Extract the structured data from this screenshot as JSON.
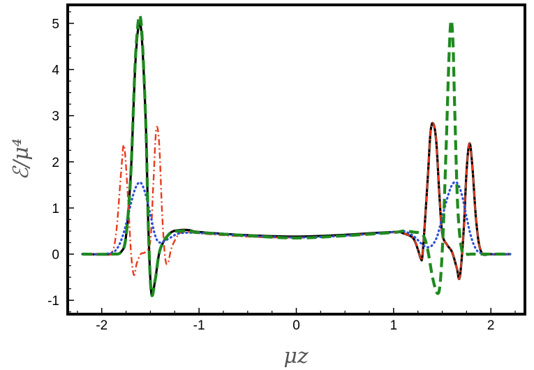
{
  "chart_data": {
    "type": "line",
    "title": "",
    "xlabel": "μz",
    "ylabel": "ℰ/μ⁴",
    "xlim": [
      -2.35,
      2.35
    ],
    "ylim": [
      -1.3,
      5.4
    ],
    "grid": false,
    "legend": "none",
    "x_ticks": [
      -2,
      -1,
      0,
      1,
      2
    ],
    "x_tick_labels": [
      "-2",
      "-1",
      "0",
      "1",
      "2"
    ],
    "y_ticks": [
      -1,
      0,
      1,
      2,
      3,
      4,
      5
    ],
    "y_tick_labels": [
      "-1",
      "0",
      "1",
      "2",
      "3",
      "4",
      "5"
    ],
    "series": [
      {
        "style": "solid",
        "color": "#000000",
        "x": [
          -2.2,
          -1.9,
          -1.8,
          -1.75,
          -1.7,
          -1.65,
          -1.6,
          -1.55,
          -1.52,
          -1.49,
          -1.45,
          -1.4,
          -1.3,
          -1.2,
          -1.1,
          -1.0,
          -0.5,
          0.0,
          0.5,
          1.0,
          1.1,
          1.2,
          1.25,
          1.28,
          1.3,
          1.35,
          1.38,
          1.41,
          1.44,
          1.47,
          1.5,
          1.55,
          1.6,
          1.65,
          1.68,
          1.72,
          1.75,
          1.78,
          1.81,
          1.85,
          1.9,
          2.0,
          2.2
        ],
        "y": [
          0.0,
          0.0,
          0.05,
          0.4,
          1.8,
          4.3,
          4.95,
          3.0,
          0.5,
          -0.85,
          -0.55,
          0.1,
          0.45,
          0.52,
          0.52,
          0.48,
          0.41,
          0.38,
          0.42,
          0.48,
          0.45,
          0.35,
          0.1,
          -0.1,
          0.05,
          1.6,
          2.65,
          2.82,
          2.4,
          1.3,
          0.45,
          0.2,
          0.05,
          -0.3,
          -0.5,
          0.5,
          1.8,
          2.4,
          1.9,
          0.7,
          0.05,
          0.0,
          0.0
        ]
      },
      {
        "style": "dashed",
        "color": "#1f8a1f",
        "x": [
          -2.2,
          -1.9,
          -1.8,
          -1.75,
          -1.7,
          -1.65,
          -1.6,
          -1.55,
          -1.52,
          -1.49,
          -1.45,
          -1.4,
          -1.3,
          -1.2,
          -1.1,
          -1.0,
          -0.5,
          0.0,
          0.5,
          1.0,
          1.1,
          1.2,
          1.3,
          1.35,
          1.4,
          1.45,
          1.48,
          1.51,
          1.54,
          1.57,
          1.59,
          1.61,
          1.63,
          1.66,
          1.7,
          1.75,
          1.8,
          2.0,
          2.2
        ],
        "y": [
          0.0,
          0.0,
          0.05,
          0.4,
          1.8,
          4.4,
          5.1,
          3.0,
          0.5,
          -0.85,
          -0.55,
          0.1,
          0.45,
          0.5,
          0.5,
          0.47,
          0.4,
          0.35,
          0.4,
          0.47,
          0.5,
          0.48,
          0.42,
          0.1,
          -0.5,
          -0.85,
          -0.6,
          0.5,
          2.3,
          4.3,
          5.05,
          4.6,
          3.0,
          1.0,
          0.1,
          0.0,
          0.0,
          0.0,
          0.0
        ]
      },
      {
        "style": "dashdot",
        "color": "#e83a1c",
        "x": [
          -2.2,
          -2.0,
          -1.9,
          -1.85,
          -1.8,
          -1.77,
          -1.73,
          -1.7,
          -1.67,
          -1.64,
          -1.6,
          -1.55,
          -1.5,
          -1.47,
          -1.44,
          -1.41,
          -1.38,
          -1.35,
          -1.32,
          -1.28,
          -1.2,
          -1.1,
          -1.0,
          -0.5,
          0.0,
          0.5,
          1.0,
          1.1,
          1.2,
          1.25,
          1.28,
          1.3,
          1.35,
          1.38,
          1.41,
          1.44,
          1.47,
          1.5,
          1.55,
          1.6,
          1.65,
          1.68,
          1.72,
          1.75,
          1.78,
          1.81,
          1.85,
          1.9,
          2.0,
          2.2
        ],
        "y": [
          0.0,
          0.0,
          0.02,
          0.5,
          1.8,
          2.35,
          1.2,
          0.05,
          -0.45,
          -0.2,
          0.0,
          0.05,
          0.3,
          1.5,
          2.7,
          2.4,
          0.9,
          -0.05,
          -0.2,
          0.15,
          0.45,
          0.48,
          0.45,
          0.38,
          0.36,
          0.4,
          0.47,
          0.45,
          0.35,
          0.1,
          -0.1,
          0.05,
          1.6,
          2.65,
          2.82,
          2.4,
          1.3,
          0.45,
          0.2,
          0.05,
          -0.3,
          -0.5,
          0.5,
          1.8,
          2.4,
          1.9,
          0.7,
          0.05,
          0.0,
          0.0
        ]
      },
      {
        "style": "dotted",
        "color": "#2a4fd8",
        "x": [
          -2.2,
          -2.0,
          -1.9,
          -1.85,
          -1.8,
          -1.75,
          -1.7,
          -1.65,
          -1.6,
          -1.55,
          -1.5,
          -1.45,
          -1.4,
          -1.3,
          -1.2,
          -1.0,
          -0.5,
          0.0,
          0.5,
          1.0,
          1.1,
          1.2,
          1.3,
          1.35,
          1.4,
          1.45,
          1.5,
          1.55,
          1.6,
          1.65,
          1.7,
          1.75,
          1.8,
          1.85,
          1.9,
          2.0,
          2.2
        ],
        "y": [
          0.0,
          0.0,
          0.03,
          0.1,
          0.3,
          0.65,
          1.1,
          1.45,
          1.55,
          1.3,
          0.85,
          0.4,
          0.25,
          0.35,
          0.45,
          0.46,
          0.4,
          0.36,
          0.4,
          0.48,
          0.5,
          0.4,
          0.2,
          0.15,
          0.2,
          0.4,
          0.8,
          1.2,
          1.5,
          1.55,
          1.3,
          0.8,
          0.35,
          0.1,
          0.02,
          0.0,
          0.0
        ]
      }
    ]
  }
}
